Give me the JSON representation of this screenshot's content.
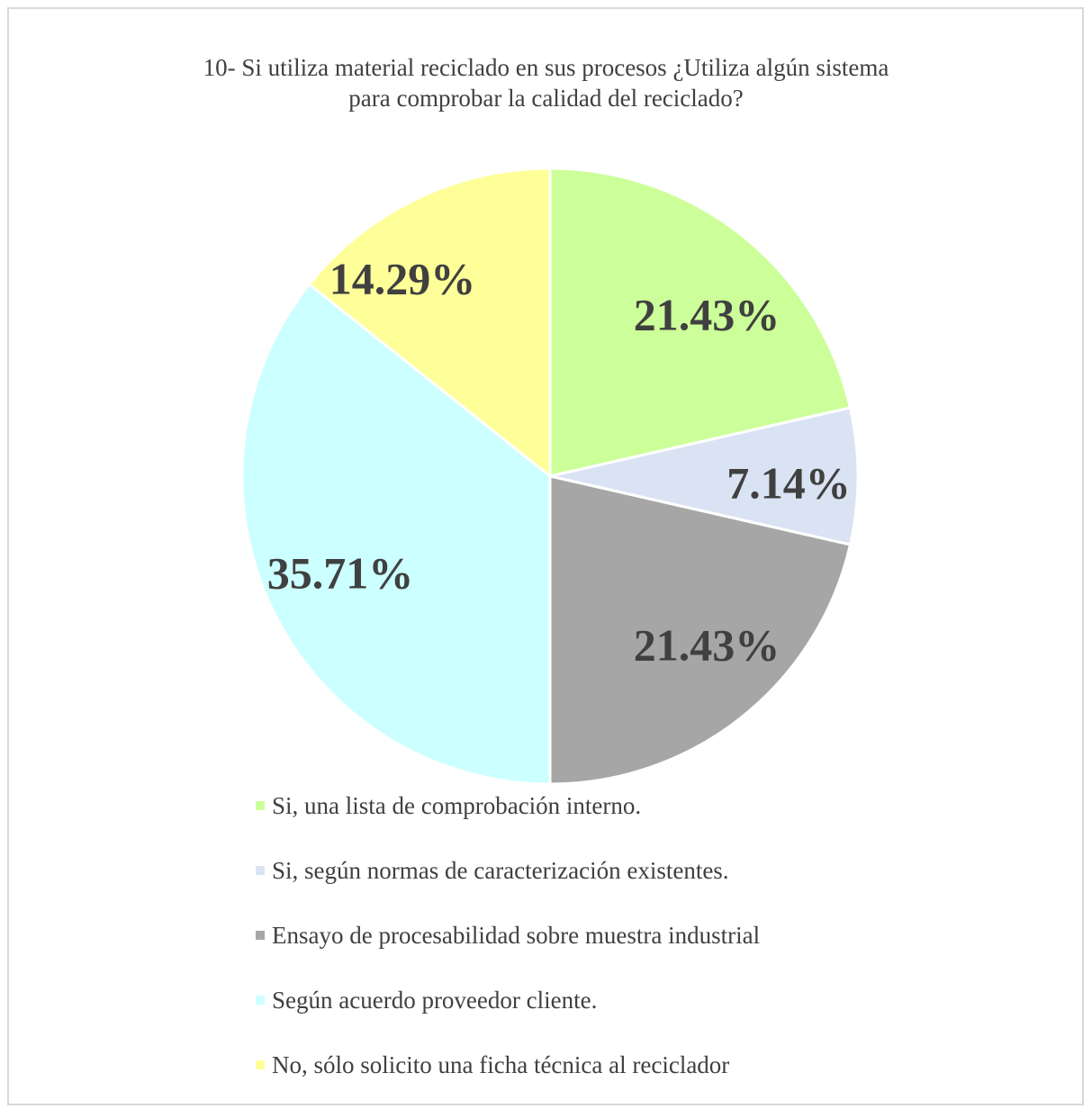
{
  "chart_data": {
    "type": "pie",
    "title": "10- Si utiliza material reciclado en sus procesos ¿Utiliza algún sistema para comprobar la calidad del reciclado?",
    "title_lines": [
      "10- Si utiliza material reciclado en sus procesos ¿Utiliza algún sistema",
      "para comprobar la calidad del reciclado?"
    ],
    "legend_position": "bottom",
    "slices": [
      {
        "label": "Si, una lista de comprobación interno.",
        "value": 21.43,
        "display": "21.43%",
        "color": "#ccff99"
      },
      {
        "label": "Si, según normas de caracterización existentes.",
        "value": 7.14,
        "display": "7.14%",
        "color": "#dae3f3"
      },
      {
        "label": "Ensayo de procesabilidad sobre muestra industrial",
        "value": 21.43,
        "display": "21.43%",
        "color": "#a6a6a6"
      },
      {
        "label": "Según acuerdo proveedor cliente.",
        "value": 35.71,
        "display": "35.71%",
        "color": "#ccffff"
      },
      {
        "label": "No, sólo solicito una ficha técnica al reciclador",
        "value": 14.29,
        "display": "14.29%",
        "color": "#ffff99"
      }
    ]
  }
}
